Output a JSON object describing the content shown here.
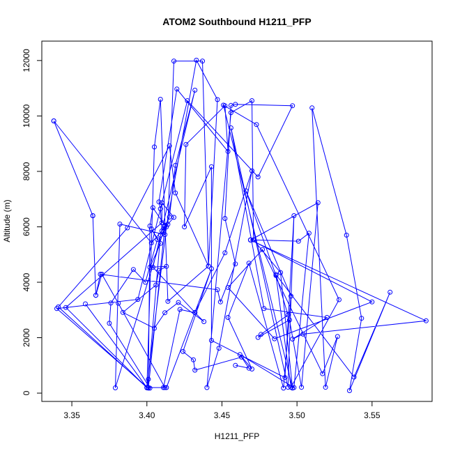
{
  "chart_data": {
    "type": "line",
    "title": "ATOM2 Southbound H1211_PFP",
    "xlabel": "H1211_PFP",
    "ylabel": "Altitude (m)",
    "xlim": [
      3.33,
      3.59
    ],
    "ylim": [
      -300,
      12700
    ],
    "x_ticks": [
      3.35,
      3.4,
      3.45,
      3.5,
      3.55
    ],
    "x_tick_labels": [
      "3.35",
      "3.40",
      "3.45",
      "3.50",
      "3.55"
    ],
    "y_ticks": [
      0,
      2000,
      4000,
      6000,
      8000,
      10000,
      12000
    ],
    "y_tick_labels": [
      "0",
      "2000",
      "4000",
      "6000",
      "8000",
      "10000",
      "12000"
    ],
    "grid": false,
    "series_color": "#0000ff",
    "series": [
      {
        "points": [
          [
            3.338,
            9820
          ],
          [
            3.364,
            6400
          ],
          [
            3.366,
            3530
          ],
          [
            3.369,
            4290
          ],
          [
            3.447,
            3730
          ],
          [
            3.449,
            3290
          ],
          [
            3.459,
            4660
          ],
          [
            3.452,
            6300
          ],
          [
            3.456,
            10380
          ],
          [
            3.459,
            10420
          ],
          [
            3.497,
            10370
          ],
          [
            3.474,
            7800
          ],
          [
            3.427,
            10550
          ],
          [
            3.394,
            3380
          ],
          [
            3.34,
            3050
          ],
          [
            3.401,
            180
          ],
          [
            3.412,
            6030
          ],
          [
            3.414,
            6090
          ],
          [
            3.418,
            11980
          ],
          [
            3.437,
            11980
          ],
          [
            3.441,
            4580
          ],
          [
            3.419,
            7220
          ],
          [
            3.415,
            8920
          ],
          [
            3.387,
            5960
          ],
          [
            3.341,
            3110
          ],
          [
            3.4,
            200
          ],
          [
            3.405,
            8880
          ],
          [
            3.409,
            10600
          ],
          [
            3.414,
            3310
          ],
          [
            3.441,
            4580
          ],
          [
            3.447,
            10590
          ],
          [
            3.433,
            12010
          ],
          [
            3.412,
            5720
          ],
          [
            3.382,
            6100
          ],
          [
            3.379,
            190
          ],
          [
            3.412,
            6020
          ],
          [
            3.415,
            6350
          ],
          [
            3.419,
            8220
          ],
          [
            3.432,
            10930
          ],
          [
            3.404,
            4540
          ],
          [
            3.432,
            2910
          ],
          [
            3.452,
            5060
          ],
          [
            3.47,
            8020
          ],
          [
            3.448,
            1620
          ],
          [
            3.44,
            200
          ],
          [
            3.456,
            10120
          ],
          [
            3.47,
            10550
          ],
          [
            3.471,
            5530
          ],
          [
            3.489,
            4350
          ],
          [
            3.497,
            180
          ],
          [
            3.451,
            10390
          ],
          [
            3.473,
            9690
          ],
          [
            3.528,
            3370
          ],
          [
            3.496,
            210
          ],
          [
            3.486,
            4240
          ],
          [
            3.466,
            7300
          ],
          [
            3.496,
            3500
          ],
          [
            3.491,
            180
          ],
          [
            3.468,
            4690
          ],
          [
            3.454,
            2730
          ],
          [
            3.47,
            870
          ],
          [
            3.462,
            1390
          ],
          [
            3.498,
            200
          ],
          [
            3.508,
            5770
          ],
          [
            3.501,
            5480
          ],
          [
            3.469,
            5530
          ],
          [
            3.55,
            3290
          ],
          [
            3.485,
            1960
          ],
          [
            3.454,
            3810
          ],
          [
            3.477,
            5180
          ],
          [
            3.517,
            700
          ],
          [
            3.527,
            2040
          ],
          [
            3.519,
            210
          ],
          [
            3.51,
            10290
          ],
          [
            3.533,
            5700
          ],
          [
            3.543,
            2700
          ],
          [
            3.535,
            90
          ],
          [
            3.562,
            3640
          ],
          [
            3.538,
            580
          ],
          [
            3.486,
            4280
          ],
          [
            3.494,
            2820
          ],
          [
            3.476,
            2120
          ],
          [
            3.474,
            2010
          ],
          [
            3.495,
            2640
          ],
          [
            3.503,
            210
          ],
          [
            3.514,
            6870
          ],
          [
            3.469,
            5520
          ],
          [
            3.586,
            2610
          ],
          [
            3.504,
            2130
          ],
          [
            3.497,
            1950
          ],
          [
            3.52,
            2730
          ],
          [
            3.478,
            3050
          ],
          [
            3.456,
            9570
          ],
          [
            3.494,
            210
          ],
          [
            3.498,
            6400
          ],
          [
            3.492,
            560
          ],
          [
            3.443,
            1900
          ],
          [
            3.443,
            8170
          ],
          [
            3.425,
            6000
          ],
          [
            3.426,
            8970
          ],
          [
            3.452,
            10370
          ],
          [
            3.454,
            8720
          ],
          [
            3.42,
            10970
          ],
          [
            3.408,
            6900
          ],
          [
            3.409,
            6650
          ],
          [
            3.41,
            5850
          ],
          [
            3.412,
            6050
          ],
          [
            3.404,
            6690
          ],
          [
            3.402,
            6030
          ],
          [
            3.401,
            200
          ],
          [
            3.412,
            200
          ],
          [
            3.381,
            3240
          ],
          [
            3.37,
            4290
          ],
          [
            3.366,
            3530
          ],
          [
            3.364,
            6400
          ],
          [
            3.338,
            9820
          ],
          [
            3.403,
            5420
          ],
          [
            3.418,
            6340
          ],
          [
            3.41,
            6870
          ],
          [
            3.41,
            6150
          ],
          [
            3.346,
            3090
          ],
          [
            3.4,
            190
          ],
          [
            3.413,
            6000
          ],
          [
            3.409,
            5700
          ],
          [
            3.401,
            500
          ],
          [
            3.4,
            200
          ],
          [
            3.359,
            3220
          ],
          [
            3.4,
            200
          ],
          [
            3.402,
            180
          ],
          [
            3.375,
            2520
          ],
          [
            3.376,
            3250
          ],
          [
            3.391,
            4460
          ],
          [
            3.399,
            4000
          ],
          [
            3.407,
            5540
          ],
          [
            3.403,
            5930
          ],
          [
            3.409,
            5400
          ],
          [
            3.402,
            4540
          ],
          [
            3.413,
            4570
          ],
          [
            3.408,
            4420
          ],
          [
            3.406,
            3900
          ],
          [
            3.384,
            2910
          ],
          [
            3.405,
            2340
          ],
          [
            3.412,
            2900
          ],
          [
            3.421,
            3270
          ],
          [
            3.438,
            2580
          ],
          [
            3.432,
            2900
          ],
          [
            3.422,
            3020
          ],
          [
            3.411,
            200
          ],
          [
            3.413,
            200
          ],
          [
            3.443,
            4490
          ],
          [
            3.424,
            1500
          ],
          [
            3.431,
            1200
          ],
          [
            3.432,
            830
          ],
          [
            3.463,
            1300
          ],
          [
            3.468,
            900
          ],
          [
            3.459,
            1000
          ]
        ]
      }
    ]
  }
}
